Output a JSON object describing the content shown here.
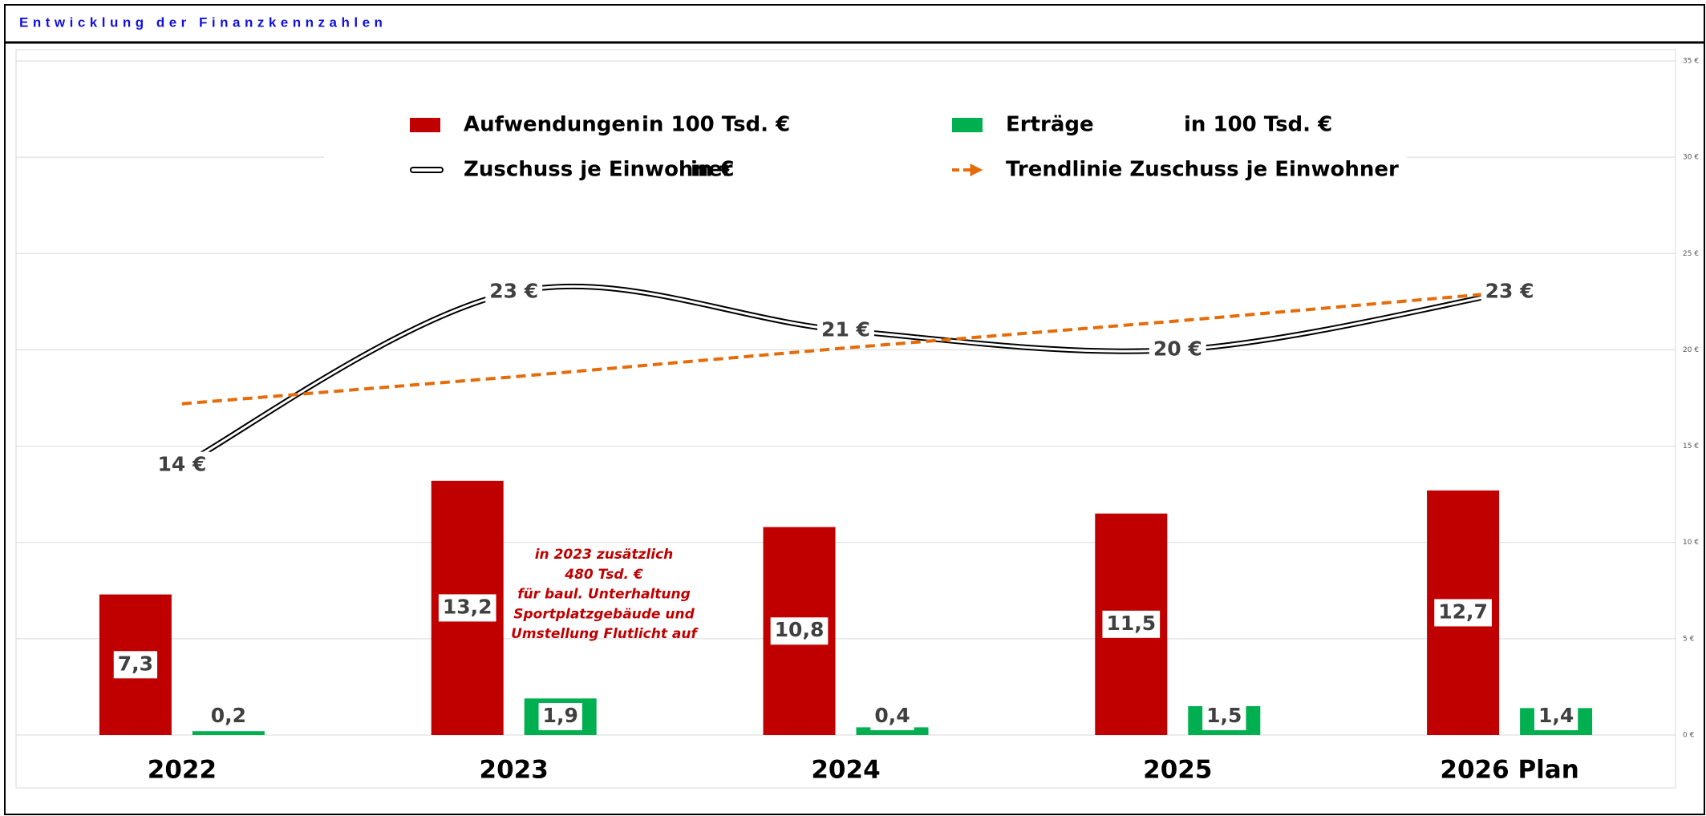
{
  "chart_data": {
    "type": "bar_line",
    "title": "Entwicklung der Finanzkennzahlen",
    "categories": [
      "2022",
      "2023",
      "2024",
      "2025",
      "2026 Plan"
    ],
    "series": [
      {
        "name": "Aufwendungen",
        "unit": "in 100 Tsd. €",
        "type": "bar",
        "color": "#c00000",
        "values": [
          7.3,
          13.2,
          10.8,
          11.5,
          12.7
        ],
        "value_labels": [
          "7,3",
          "13,2",
          "10,8",
          "11,5",
          "12,7"
        ]
      },
      {
        "name": "Erträge",
        "unit": "in 100 Tsd. €",
        "type": "bar",
        "color": "#00b050",
        "values": [
          0.2,
          1.9,
          0.4,
          1.5,
          1.4
        ],
        "value_labels": [
          "0,2",
          "1,9",
          "0,4",
          "1,5",
          "1,4"
        ]
      },
      {
        "name": "Zuschuss je Einwohner",
        "unit": "in €",
        "type": "line",
        "color": "#000000",
        "values": [
          14,
          23,
          21,
          20,
          23
        ],
        "value_labels": [
          "14 €",
          "23 €",
          "21 €",
          "20 €",
          "23 €"
        ]
      },
      {
        "name": "Trendlinie  Zuschuss je Einwohner",
        "type": "trend",
        "color": "#e46c0a",
        "values": [
          17.2,
          18.6,
          20.1,
          21.5,
          23.0
        ]
      }
    ],
    "annotation": [
      "in 2023 zusätzlich",
      "480 Tsd. €",
      "für baul. Unterhaltung",
      "Sportplatzgebäude und",
      "Umstellung Flutlicht auf"
    ],
    "ylim": [
      0,
      35
    ],
    "yticks": [
      {
        "value": 0,
        "label": "0 €"
      },
      {
        "value": 5,
        "label": "5 €"
      },
      {
        "value": 10,
        "label": "10 €"
      },
      {
        "value": 15,
        "label": "15 €"
      },
      {
        "value": 20,
        "label": "20 €"
      },
      {
        "value": 25,
        "label": "25 €"
      },
      {
        "value": 30,
        "label": "30 €"
      },
      {
        "value": 35,
        "label": "35 €"
      }
    ],
    "grid": true
  }
}
